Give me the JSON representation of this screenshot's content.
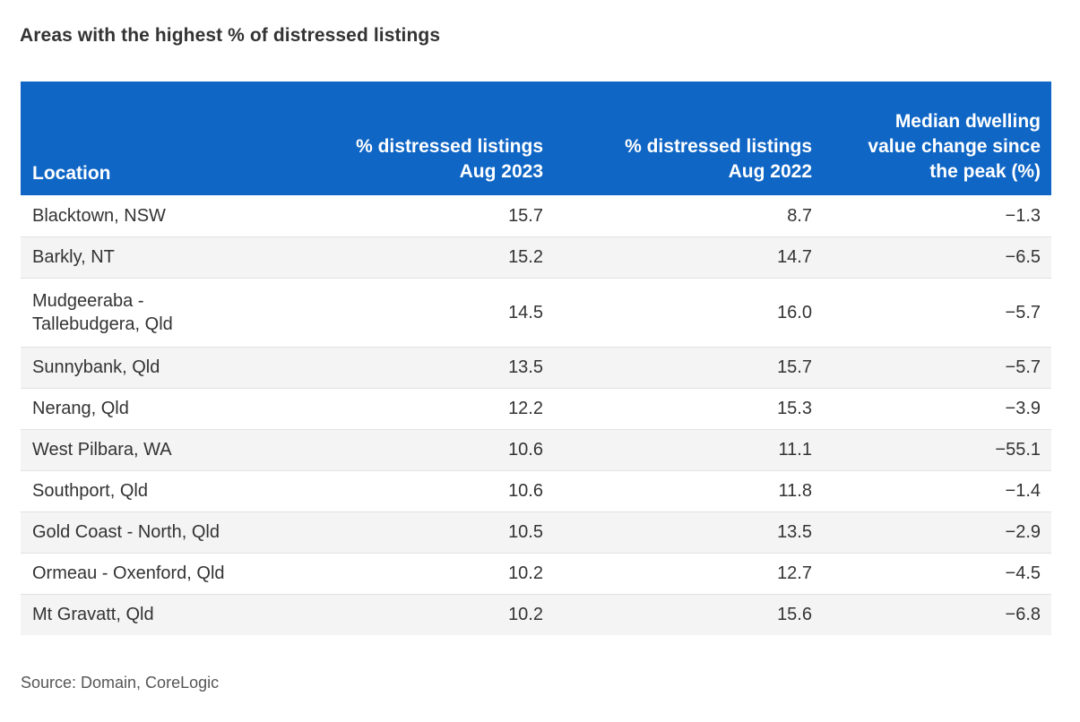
{
  "title": "Areas with the highest % of distressed listings",
  "source": "Source: Domain, CoreLogic",
  "chart_data": {
    "type": "table",
    "title": "Areas with the highest % of distressed listings",
    "columns": [
      "Location",
      "% distressed listings Aug 2023",
      "% distressed listings Aug 2022",
      "Median dwelling value change since the peak (%)"
    ],
    "rows": [
      {
        "location": "Blacktown, NSW",
        "aug2023": "15.7",
        "aug2022": "8.7",
        "change": "−1.3"
      },
      {
        "location": "Barkly, NT",
        "aug2023": "15.2",
        "aug2022": "14.7",
        "change": "−6.5"
      },
      {
        "location": "Mudgeeraba - Tallebudgera, Qld",
        "aug2023": "14.5",
        "aug2022": "16.0",
        "change": "−5.7"
      },
      {
        "location": "Sunnybank, Qld",
        "aug2023": "13.5",
        "aug2022": "15.7",
        "change": "−5.7"
      },
      {
        "location": "Nerang, Qld",
        "aug2023": "12.2",
        "aug2022": "15.3",
        "change": "−3.9"
      },
      {
        "location": "West Pilbara, WA",
        "aug2023": "10.6",
        "aug2022": "11.1",
        "change": "−55.1"
      },
      {
        "location": "Southport, Qld",
        "aug2023": "10.6",
        "aug2022": "11.8",
        "change": "−1.4"
      },
      {
        "location": "Gold Coast - North, Qld",
        "aug2023": "10.5",
        "aug2022": "13.5",
        "change": "−2.9"
      },
      {
        "location": "Ormeau - Oxenford, Qld",
        "aug2023": "10.2",
        "aug2022": "12.7",
        "change": "−4.5"
      },
      {
        "location": "Mt Gravatt, Qld",
        "aug2023": "10.2",
        "aug2022": "15.6",
        "change": "−6.8"
      }
    ],
    "header_color": "#0f66c5"
  }
}
